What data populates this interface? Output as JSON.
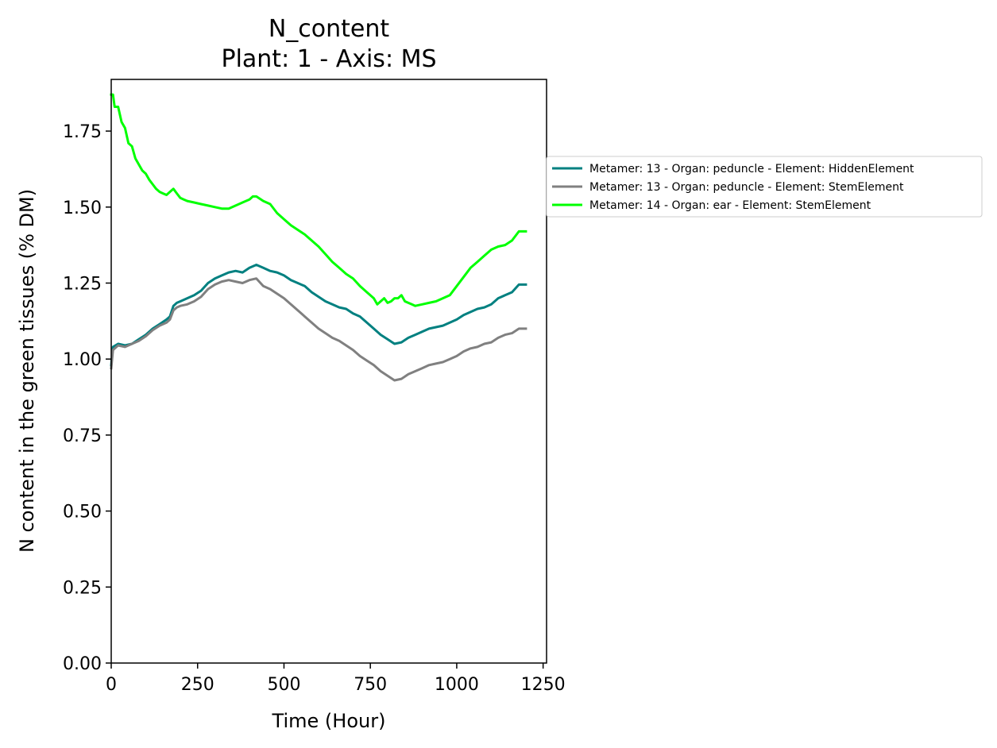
{
  "chart_data": {
    "type": "line",
    "title": "N_content",
    "subtitle": "Plant: 1 - Axis: MS",
    "xlabel": "Time (Hour)",
    "ylabel": "N content in the green tissues (% DM)",
    "xlim": [
      0,
      1260
    ],
    "ylim": [
      0,
      1.92
    ],
    "xticks": [
      0,
      250,
      500,
      750,
      1000,
      1250
    ],
    "yticks": [
      0.0,
      0.25,
      0.5,
      0.75,
      1.0,
      1.25,
      1.5,
      1.75
    ],
    "xtick_labels": [
      "0",
      "250",
      "500",
      "750",
      "1000",
      "1250"
    ],
    "ytick_labels": [
      "0.00",
      "0.25",
      "0.50",
      "0.75",
      "1.00",
      "1.25",
      "1.50",
      "1.75"
    ],
    "grid": false,
    "legend_position": "outside-right",
    "series": [
      {
        "name": "Metamer: 13 - Organ: peduncle - Element: HiddenElement",
        "color": "#008080",
        "x": [
          0,
          5,
          20,
          40,
          60,
          80,
          100,
          120,
          140,
          160,
          170,
          180,
          190,
          200,
          220,
          240,
          260,
          280,
          300,
          320,
          340,
          360,
          380,
          400,
          420,
          440,
          460,
          480,
          500,
          520,
          540,
          560,
          580,
          600,
          620,
          640,
          660,
          680,
          700,
          720,
          740,
          760,
          780,
          800,
          820,
          840,
          860,
          880,
          900,
          920,
          940,
          960,
          980,
          1000,
          1020,
          1040,
          1060,
          1080,
          1100,
          1120,
          1140,
          1160,
          1180,
          1200
        ],
        "y": [
          0.98,
          1.04,
          1.05,
          1.045,
          1.05,
          1.065,
          1.08,
          1.1,
          1.115,
          1.13,
          1.14,
          1.175,
          1.185,
          1.19,
          1.2,
          1.21,
          1.225,
          1.25,
          1.265,
          1.275,
          1.285,
          1.29,
          1.285,
          1.3,
          1.31,
          1.3,
          1.29,
          1.285,
          1.275,
          1.26,
          1.25,
          1.24,
          1.22,
          1.205,
          1.19,
          1.18,
          1.17,
          1.165,
          1.15,
          1.14,
          1.12,
          1.1,
          1.08,
          1.065,
          1.05,
          1.055,
          1.07,
          1.08,
          1.09,
          1.1,
          1.105,
          1.11,
          1.12,
          1.13,
          1.145,
          1.155,
          1.165,
          1.17,
          1.18,
          1.2,
          1.21,
          1.22,
          1.245,
          1.245
        ]
      },
      {
        "name": "Metamer: 13 - Organ: peduncle - Element: StemElement",
        "color": "#808080",
        "x": [
          0,
          5,
          20,
          40,
          60,
          80,
          100,
          120,
          140,
          160,
          170,
          180,
          190,
          200,
          220,
          240,
          260,
          280,
          300,
          320,
          340,
          360,
          380,
          400,
          420,
          440,
          460,
          480,
          500,
          520,
          540,
          560,
          580,
          600,
          620,
          640,
          660,
          680,
          700,
          720,
          740,
          760,
          780,
          800,
          820,
          840,
          860,
          880,
          900,
          920,
          940,
          960,
          980,
          1000,
          1020,
          1040,
          1060,
          1080,
          1100,
          1120,
          1140,
          1160,
          1180,
          1200
        ],
        "y": [
          0.97,
          1.03,
          1.045,
          1.04,
          1.05,
          1.06,
          1.075,
          1.095,
          1.11,
          1.12,
          1.13,
          1.16,
          1.17,
          1.175,
          1.18,
          1.19,
          1.205,
          1.23,
          1.245,
          1.255,
          1.26,
          1.255,
          1.25,
          1.26,
          1.265,
          1.24,
          1.23,
          1.215,
          1.2,
          1.18,
          1.16,
          1.14,
          1.12,
          1.1,
          1.085,
          1.07,
          1.06,
          1.045,
          1.03,
          1.01,
          0.995,
          0.98,
          0.96,
          0.945,
          0.93,
          0.935,
          0.95,
          0.96,
          0.97,
          0.98,
          0.985,
          0.99,
          1.0,
          1.01,
          1.025,
          1.035,
          1.04,
          1.05,
          1.055,
          1.07,
          1.08,
          1.085,
          1.1,
          1.1
        ]
      },
      {
        "name": "Metamer: 14 - Organ: ear - Element: StemElement",
        "color": "#00ff00",
        "x": [
          0,
          5,
          10,
          20,
          30,
          40,
          50,
          60,
          70,
          80,
          90,
          100,
          110,
          120,
          130,
          140,
          150,
          160,
          170,
          180,
          190,
          200,
          210,
          220,
          240,
          260,
          280,
          300,
          320,
          340,
          360,
          380,
          400,
          410,
          420,
          440,
          460,
          480,
          500,
          520,
          540,
          560,
          580,
          600,
          620,
          640,
          660,
          680,
          700,
          720,
          740,
          760,
          770,
          780,
          790,
          800,
          810,
          820,
          830,
          840,
          850,
          860,
          870,
          880,
          900,
          920,
          940,
          960,
          980,
          1000,
          1020,
          1040,
          1060,
          1080,
          1100,
          1120,
          1140,
          1160,
          1180,
          1200
        ],
        "y": [
          1.87,
          1.87,
          1.83,
          1.83,
          1.78,
          1.76,
          1.71,
          1.7,
          1.66,
          1.64,
          1.62,
          1.61,
          1.59,
          1.575,
          1.56,
          1.55,
          1.545,
          1.54,
          1.55,
          1.56,
          1.545,
          1.53,
          1.525,
          1.52,
          1.515,
          1.51,
          1.505,
          1.5,
          1.495,
          1.495,
          1.505,
          1.515,
          1.525,
          1.535,
          1.535,
          1.52,
          1.51,
          1.48,
          1.46,
          1.44,
          1.425,
          1.41,
          1.39,
          1.37,
          1.345,
          1.32,
          1.3,
          1.28,
          1.265,
          1.24,
          1.22,
          1.2,
          1.18,
          1.19,
          1.2,
          1.185,
          1.19,
          1.2,
          1.2,
          1.21,
          1.19,
          1.185,
          1.18,
          1.175,
          1.18,
          1.185,
          1.19,
          1.2,
          1.21,
          1.24,
          1.27,
          1.3,
          1.32,
          1.34,
          1.36,
          1.37,
          1.375,
          1.39,
          1.42,
          1.42
        ]
      }
    ]
  }
}
